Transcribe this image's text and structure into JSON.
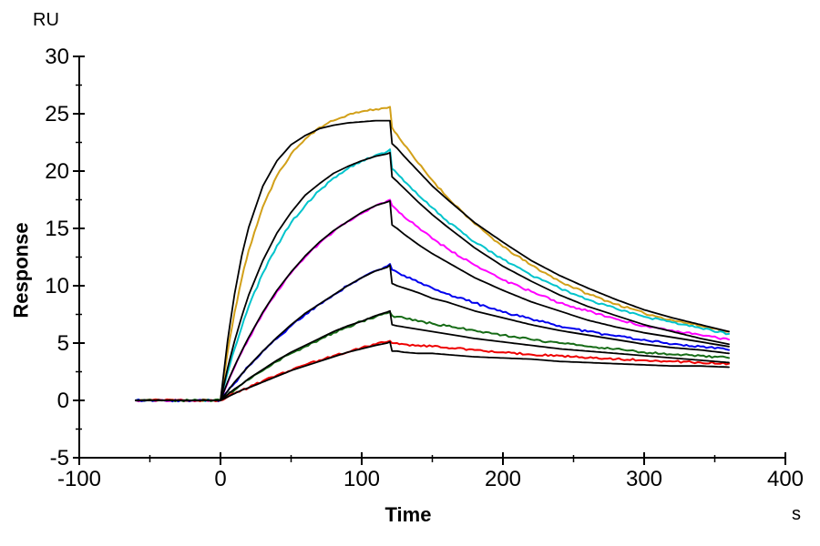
{
  "figure": {
    "y_unit_label": "RU",
    "x_unit_label": "s",
    "y_axis_title": "Response",
    "x_axis_title": "Time"
  },
  "chart_data": {
    "type": "line",
    "title": "",
    "xlabel": "Time",
    "x_unit": "s",
    "ylabel": "Response",
    "y_unit": "RU",
    "xlim": [
      -100,
      400
    ],
    "ylim": [
      -5,
      30
    ],
    "x_major_ticks": [
      -100,
      0,
      100,
      200,
      300,
      400
    ],
    "x_minor_step": 50,
    "y_major_ticks": [
      -5,
      0,
      5,
      10,
      15,
      20,
      25,
      30
    ],
    "y_minor_step": 2.5,
    "grid": false,
    "legend": "none",
    "noise_amplitude": 0.09,
    "t": [
      -60,
      -40,
      -20,
      -5,
      0,
      5,
      10,
      15,
      20,
      30,
      40,
      50,
      60,
      70,
      80,
      90,
      100,
      110,
      118,
      120,
      121.5,
      125,
      130,
      140,
      150,
      160,
      180,
      200,
      220,
      240,
      260,
      280,
      300,
      320,
      340,
      360
    ],
    "series": [
      {
        "name": "trace-1-data",
        "role": "data",
        "color": "#D2A019",
        "values": [
          0,
          0,
          0,
          0,
          0,
          4.2,
          7.7,
          10.6,
          13.1,
          16.9,
          19.6,
          21.5,
          22.8,
          23.8,
          24.4,
          24.9,
          25.2,
          25.4,
          25.5,
          25.6,
          23.8,
          23.2,
          22.3,
          20.7,
          19.2,
          17.8,
          15.4,
          13.4,
          11.8,
          10.4,
          9.3,
          8.4,
          7.6,
          7.0,
          6.5,
          6.0
        ]
      },
      {
        "name": "trace-2-data",
        "role": "data",
        "color": "#00C4CC",
        "values": [
          0,
          0,
          0,
          0,
          0,
          2.4,
          4.5,
          6.4,
          8.2,
          11.1,
          13.5,
          15.5,
          17.0,
          18.3,
          19.4,
          20.2,
          20.9,
          21.4,
          21.7,
          21.9,
          20.2,
          19.8,
          19.1,
          17.9,
          16.8,
          15.7,
          13.8,
          12.3,
          10.9,
          9.8,
          8.8,
          8.0,
          7.3,
          6.8,
          6.3,
          5.8
        ]
      },
      {
        "name": "trace-3-data",
        "role": "data",
        "color": "#FF00FF",
        "values": [
          0,
          0,
          0,
          0,
          0,
          1.5,
          2.9,
          4.2,
          5.4,
          7.6,
          9.5,
          11.1,
          12.5,
          13.7,
          14.7,
          15.6,
          16.3,
          17.0,
          17.4,
          17.5,
          17.0,
          16.6,
          16.0,
          15.1,
          14.1,
          13.3,
          11.8,
          10.5,
          9.5,
          8.5,
          7.8,
          7.1,
          6.5,
          6.1,
          5.7,
          5.3
        ]
      },
      {
        "name": "trace-4-data",
        "role": "data",
        "color": "#0000EE",
        "values": [
          0,
          0,
          0,
          0,
          0,
          0.8,
          1.5,
          2.3,
          3.0,
          4.3,
          5.4,
          6.5,
          7.5,
          8.4,
          9.2,
          10.0,
          10.7,
          11.3,
          11.7,
          11.9,
          11.4,
          11.2,
          10.9,
          10.3,
          9.8,
          9.3,
          8.5,
          7.7,
          7.1,
          6.5,
          6.0,
          5.6,
          5.3,
          4.9,
          4.7,
          4.4
        ]
      },
      {
        "name": "trace-5-data",
        "role": "data",
        "color": "#156B15",
        "values": [
          0,
          0,
          0,
          0,
          0,
          0.5,
          0.9,
          1.4,
          1.8,
          2.6,
          3.4,
          4.1,
          4.7,
          5.3,
          5.9,
          6.4,
          6.9,
          7.3,
          7.6,
          7.7,
          7.4,
          7.3,
          7.2,
          6.9,
          6.7,
          6.5,
          6.1,
          5.7,
          5.3,
          5.0,
          4.7,
          4.5,
          4.2,
          4.0,
          3.9,
          3.7
        ]
      },
      {
        "name": "trace-6-data",
        "role": "data",
        "color": "#EE0000",
        "values": [
          0,
          0,
          0,
          0,
          0,
          0.3,
          0.6,
          0.9,
          1.1,
          1.7,
          2.2,
          2.6,
          3.1,
          3.5,
          3.9,
          4.2,
          4.6,
          4.9,
          5.1,
          5.2,
          5.0,
          5.0,
          4.9,
          4.8,
          4.7,
          4.6,
          4.4,
          4.2,
          4.0,
          3.9,
          3.7,
          3.6,
          3.5,
          3.4,
          3.3,
          3.2
        ]
      },
      {
        "name": "trace-1-fit",
        "role": "fit",
        "color": "#000000",
        "values": [
          0,
          0,
          0,
          0,
          0,
          5.2,
          9.3,
          12.6,
          15.1,
          18.7,
          20.9,
          22.3,
          23.1,
          23.7,
          24.0,
          24.2,
          24.3,
          24.4,
          24.4,
          24.4,
          22.4,
          22.0,
          21.3,
          20.0,
          18.7,
          17.6,
          15.5,
          13.8,
          12.2,
          10.9,
          9.8,
          8.8,
          7.9,
          7.2,
          6.6,
          6.0
        ]
      },
      {
        "name": "trace-2-fit",
        "role": "fit",
        "color": "#000000",
        "values": [
          0,
          0,
          0,
          0,
          0,
          2.8,
          5.2,
          7.3,
          9.2,
          12.2,
          14.6,
          16.4,
          17.9,
          18.9,
          19.8,
          20.4,
          20.9,
          21.3,
          21.5,
          21.6,
          19.5,
          19.1,
          18.5,
          17.3,
          16.2,
          15.2,
          13.3,
          11.7,
          10.4,
          9.2,
          8.2,
          7.4,
          6.6,
          6.0,
          5.4,
          4.9
        ]
      },
      {
        "name": "trace-3-fit",
        "role": "fit",
        "color": "#000000",
        "values": [
          0,
          0,
          0,
          0,
          0,
          1.6,
          3.0,
          4.3,
          5.5,
          7.7,
          9.6,
          11.2,
          12.6,
          13.8,
          14.8,
          15.6,
          16.4,
          17.0,
          17.3,
          17.4,
          15.3,
          15.0,
          14.5,
          13.6,
          12.8,
          12.1,
          10.7,
          9.6,
          8.6,
          7.8,
          7.0,
          6.4,
          5.9,
          5.5,
          5.1,
          4.7
        ]
      },
      {
        "name": "trace-4-fit",
        "role": "fit",
        "color": "#000000",
        "values": [
          0,
          0,
          0,
          0,
          0,
          0.8,
          1.6,
          2.3,
          3.0,
          4.3,
          5.5,
          6.6,
          7.6,
          8.4,
          9.2,
          10.0,
          10.7,
          11.3,
          11.6,
          11.8,
          10.2,
          10.0,
          9.8,
          9.4,
          8.9,
          8.6,
          7.8,
          7.2,
          6.6,
          6.1,
          5.7,
          5.3,
          4.9,
          4.6,
          4.4,
          4.1
        ]
      },
      {
        "name": "trace-5-fit",
        "role": "fit",
        "color": "#000000",
        "values": [
          0,
          0,
          0,
          0,
          0,
          0.5,
          1.0,
          1.4,
          1.9,
          2.7,
          3.5,
          4.2,
          4.8,
          5.4,
          6.0,
          6.5,
          6.9,
          7.4,
          7.7,
          7.8,
          6.6,
          6.5,
          6.4,
          6.2,
          6.0,
          5.8,
          5.4,
          5.1,
          4.8,
          4.5,
          4.3,
          4.1,
          3.9,
          3.7,
          3.5,
          3.3
        ]
      },
      {
        "name": "trace-6-fit",
        "role": "fit",
        "color": "#000000",
        "values": [
          0,
          0,
          0,
          0,
          0,
          0.3,
          0.6,
          0.9,
          1.1,
          1.6,
          2.1,
          2.6,
          3.0,
          3.4,
          3.8,
          4.2,
          4.5,
          4.8,
          5.0,
          5.1,
          4.3,
          4.3,
          4.2,
          4.1,
          4.1,
          4.0,
          3.8,
          3.7,
          3.6,
          3.4,
          3.3,
          3.2,
          3.1,
          3.0,
          3.0,
          2.9
        ]
      }
    ]
  }
}
